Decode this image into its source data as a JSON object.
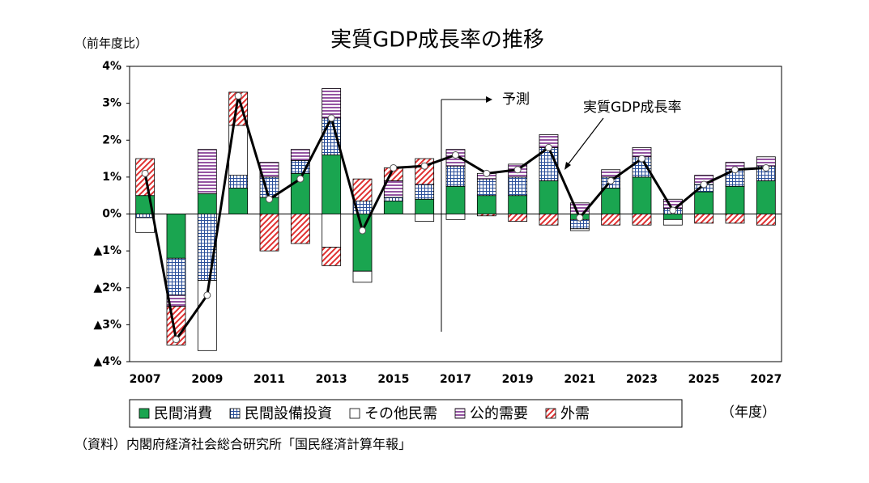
{
  "chart_data": {
    "type": "bar",
    "stacked": true,
    "title": "実質GDP成長率の推移",
    "y_label": "（前年度比）",
    "x_label": "（年度）",
    "source": "（資料）内閣府経済社会総合研究所「国民経済計算年報」",
    "forecast_label": "予測",
    "categories": [
      "2007",
      null,
      "2009",
      null,
      "2011",
      null,
      "2013",
      null,
      "2015",
      null,
      "2017",
      null,
      "2019",
      null,
      "2021",
      null,
      "2023",
      null,
      "2025",
      null,
      "2027"
    ],
    "ylim": [
      -4,
      4
    ],
    "yticks": [
      {
        "value": 4,
        "label": "4%"
      },
      {
        "value": 3,
        "label": "3%"
      },
      {
        "value": 2,
        "label": "2%"
      },
      {
        "value": 1,
        "label": "1%"
      },
      {
        "value": 0,
        "label": "0%"
      },
      {
        "value": -1,
        "label": "▲1%"
      },
      {
        "value": -2,
        "label": "▲2%"
      },
      {
        "value": -3,
        "label": "▲3%"
      },
      {
        "value": -4,
        "label": "▲4%"
      }
    ],
    "series": [
      {
        "name": "民間消費",
        "color": "#1aa550",
        "fill": "solid",
        "values": [
          0.5,
          -1.2,
          0.55,
          0.7,
          0.45,
          1.1,
          1.6,
          -1.55,
          0.35,
          0.4,
          0.75,
          0.5,
          0.5,
          0.9,
          -0.15,
          0.7,
          1.0,
          -0.15,
          0.6,
          0.75,
          0.9
        ]
      },
      {
        "name": "民間設備投資",
        "color": "#2a4f9a",
        "fill": "grid",
        "values": [
          -0.1,
          -1.0,
          -1.8,
          0.35,
          0.55,
          0.35,
          1.0,
          0.35,
          0.1,
          0.4,
          0.55,
          0.45,
          0.5,
          0.9,
          -0.25,
          0.3,
          0.55,
          0.15,
          0.2,
          0.45,
          0.4
        ]
      },
      {
        "name": "その他民需",
        "color": "#000000",
        "fill": "none",
        "values": [
          -0.4,
          0,
          -1.9,
          1.35,
          0,
          0,
          -0.9,
          -0.3,
          0,
          -0.2,
          -0.15,
          0,
          0,
          0,
          -0.05,
          0,
          0,
          -0.15,
          0,
          0,
          0
        ]
      },
      {
        "name": "公的需要",
        "color": "#7a2a8a",
        "fill": "hstripe",
        "values": [
          0,
          -0.3,
          1.2,
          0,
          0.4,
          0.3,
          0.8,
          0,
          0.45,
          0,
          0.45,
          0.15,
          0.35,
          0.35,
          0.3,
          0.2,
          0.25,
          0.25,
          0.25,
          0.2,
          0.25
        ]
      },
      {
        "name": "外需",
        "color": "#e03030",
        "fill": "diagonal",
        "values": [
          1.0,
          -1.05,
          0,
          0.9,
          -1.0,
          -0.8,
          -0.5,
          0.6,
          0.35,
          0.7,
          0,
          -0.05,
          -0.2,
          -0.3,
          0,
          -0.3,
          -0.3,
          0,
          -0.25,
          -0.25,
          -0.3
        ]
      }
    ],
    "line": {
      "name": "実質GDP成長率",
      "color": "#000000",
      "values": [
        1.1,
        -3.4,
        -2.2,
        3.2,
        0.4,
        0.95,
        2.6,
        -0.45,
        1.25,
        1.3,
        1.6,
        1.1,
        1.2,
        1.8,
        -0.1,
        0.9,
        1.5,
        0.1,
        0.8,
        1.2,
        1.25
      ]
    }
  }
}
